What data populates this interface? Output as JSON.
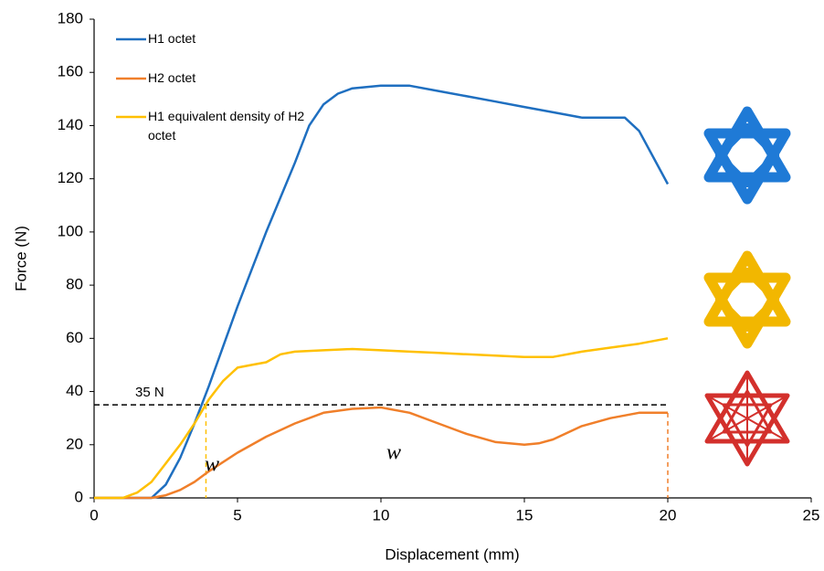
{
  "chart_data": {
    "type": "line",
    "x_label": "Displacement (mm)",
    "y_label": "Force (N)",
    "xlim": [
      0,
      25
    ],
    "xticks": [
      0,
      5,
      10,
      15,
      20,
      25
    ],
    "ylim": [
      0,
      180
    ],
    "yticks": [
      0,
      20,
      40,
      60,
      80,
      100,
      120,
      140,
      160,
      180
    ],
    "grid": false,
    "legend": "upper left",
    "series": [
      {
        "name": "H1 octet",
        "color": "#1f6fc0",
        "x": [
          0,
          1,
          2,
          2.5,
          3,
          3.5,
          4,
          4.5,
          5,
          5.5,
          6,
          6.5,
          7,
          7.5,
          8,
          8.5,
          9,
          10,
          11,
          12,
          13,
          14,
          15,
          16,
          17,
          18,
          18.5,
          19,
          19.5,
          20
        ],
        "values": [
          0,
          0,
          0,
          5,
          15,
          28,
          42,
          57,
          72,
          86,
          100,
          113,
          126,
          140,
          148,
          152,
          154,
          155,
          155,
          153,
          151,
          149,
          147,
          145,
          143,
          143,
          143,
          138,
          128,
          118
        ]
      },
      {
        "name": "H2 octet",
        "color": "#f07f2a",
        "x": [
          0,
          2,
          2.5,
          3,
          3.5,
          4,
          5,
          6,
          7,
          8,
          9,
          10,
          11,
          12,
          13,
          14,
          15,
          15.5,
          16,
          17,
          18,
          19,
          20
        ],
        "values": [
          0,
          0,
          1,
          3,
          6,
          10,
          17,
          23,
          28,
          32,
          33.5,
          34,
          32,
          28,
          24,
          21,
          20,
          20.5,
          22,
          27,
          30,
          32,
          32
        ]
      },
      {
        "name": "H1 equivalent density of H2 octet",
        "color": "#ffc000",
        "x": [
          0,
          1,
          1.5,
          2,
          2.5,
          3,
          3.5,
          4,
          4.5,
          5,
          5.5,
          6,
          6.5,
          7,
          8,
          9,
          10,
          11,
          12,
          13,
          14,
          15,
          16,
          17,
          18,
          19,
          20
        ],
        "values": [
          0,
          0,
          2,
          6,
          13,
          20,
          28,
          37,
          44,
          49,
          50,
          51,
          54,
          55,
          55.5,
          56,
          55.5,
          55,
          54.5,
          54,
          53.5,
          53,
          53,
          55,
          56.5,
          58,
          60
        ]
      }
    ],
    "reference_line": {
      "y": 35,
      "x_end": 20,
      "label": "35 N",
      "color": "#000000"
    },
    "drop_lines": [
      {
        "x": 3.9,
        "y": 35,
        "color": "#ffc000"
      },
      {
        "x": 20,
        "y": 32,
        "color": "#f07f2a"
      }
    ],
    "annotations": [
      {
        "text": "w",
        "color": "#ffc000"
      },
      {
        "text": "w",
        "color": "#e0201c"
      }
    ]
  }
}
